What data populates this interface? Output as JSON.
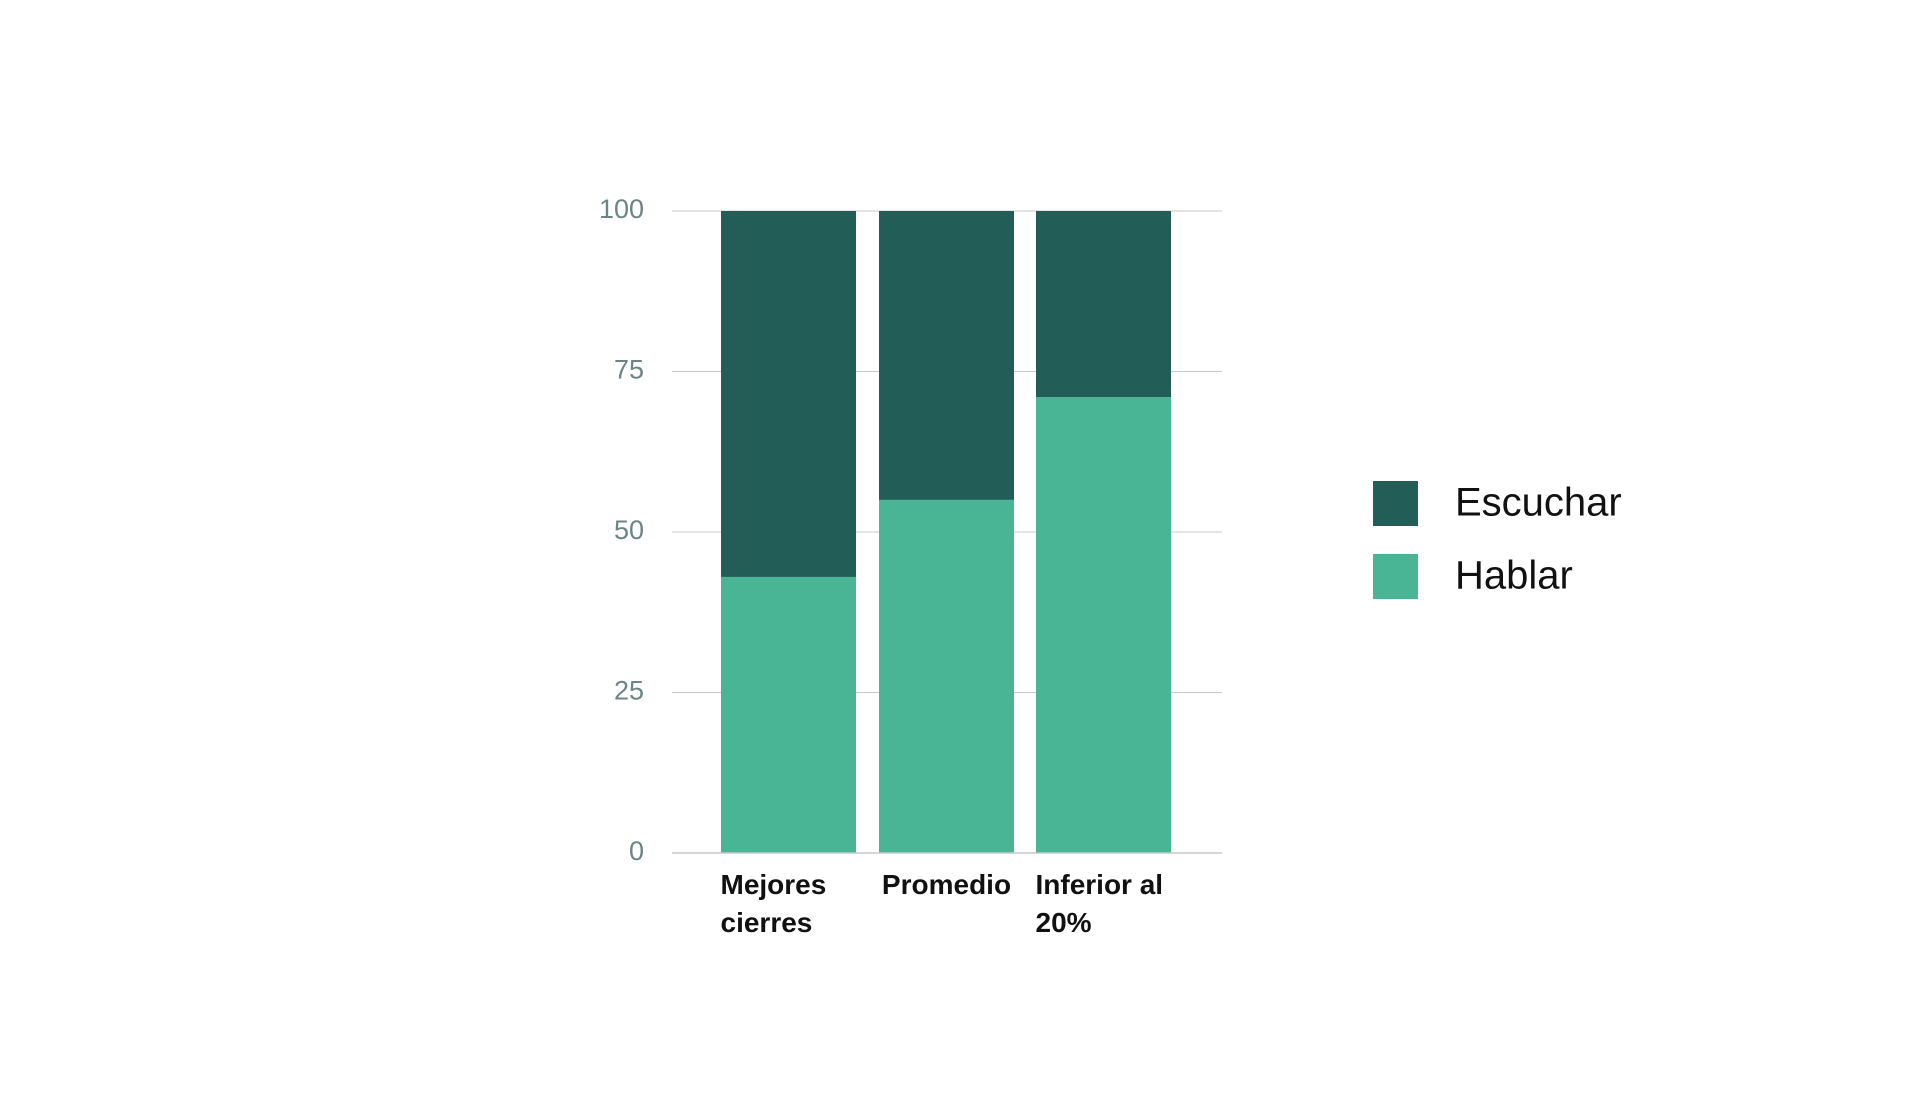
{
  "chart_data": {
    "type": "stacked_bar",
    "categories": [
      "Mejores cierres",
      "Promedio",
      "Inferior al 20%"
    ],
    "series": [
      {
        "name": "Escuchar",
        "color": "#225e57",
        "values": [
          57,
          45,
          29
        ]
      },
      {
        "name": "Hablar",
        "color": "#49b594",
        "values": [
          43,
          55,
          71
        ]
      }
    ],
    "ylim": [
      0,
      100
    ],
    "yticks": [
      0,
      25,
      50,
      75,
      100
    ],
    "grid": true,
    "legend": "right"
  }
}
